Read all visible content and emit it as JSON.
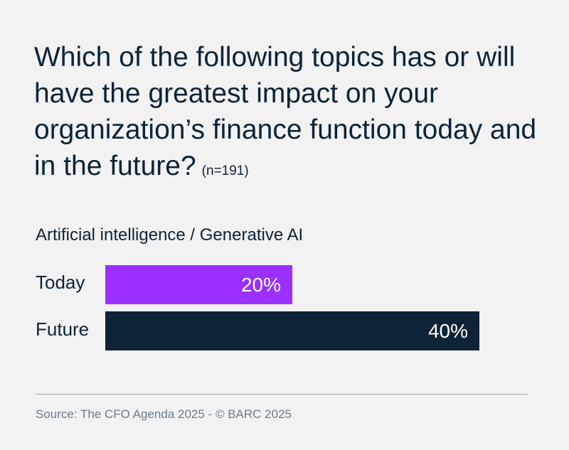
{
  "chart_data": {
    "type": "bar",
    "orientation": "horizontal",
    "title": "Which of the following topics has or will have the greatest impact on your organization’s finance function today and in the future?",
    "sample_size": "(n=191)",
    "subtitle": "Artificial intelligence / Generative AI",
    "categories": [
      "Today",
      "Future"
    ],
    "values": [
      20,
      40
    ],
    "value_labels": [
      "20%",
      "40%"
    ],
    "unit": "%",
    "xlim": [
      0,
      100
    ],
    "colors": [
      "#9b30ff",
      "#0d2338"
    ],
    "grid": false,
    "legend": "none"
  },
  "footer": {
    "source": "Source: The CFO Agenda 2025 - © BARC 2025"
  },
  "colors": {
    "background": "#f2f2f2",
    "text": "#0d2338",
    "muted": "#6c7c8a"
  }
}
